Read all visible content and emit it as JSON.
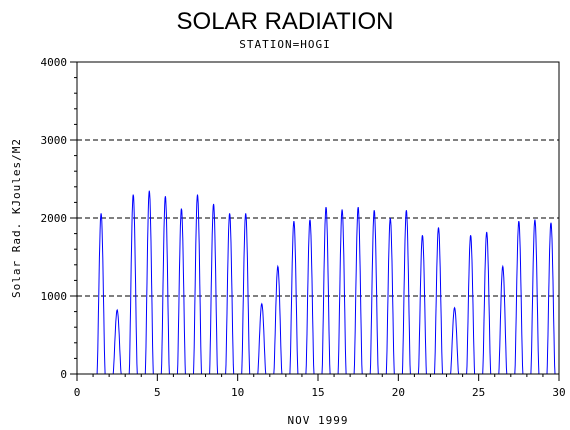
{
  "chart_data": {
    "type": "line",
    "title": "SOLAR RADIATION",
    "subtitle": "STATION=HOGI",
    "xlabel": "NOV 1999",
    "ylabel": "Solar Rad. KJoules/M2",
    "xlim": [
      0,
      30
    ],
    "ylim": [
      0,
      4000
    ],
    "x_ticks": [
      0,
      5,
      10,
      15,
      20,
      25,
      30
    ],
    "y_ticks": [
      0,
      1000,
      2000,
      3000,
      4000
    ],
    "grid": "horizontal dashed",
    "series": [
      {
        "color": "#0000ff",
        "daily_peaks": [
          {
            "day": 1,
            "peak": 2060
          },
          {
            "day": 2,
            "peak": 820
          },
          {
            "day": 3,
            "peak": 2300
          },
          {
            "day": 4,
            "peak": 2350
          },
          {
            "day": 5,
            "peak": 2280
          },
          {
            "day": 6,
            "peak": 2120
          },
          {
            "day": 7,
            "peak": 2300
          },
          {
            "day": 8,
            "peak": 2180
          },
          {
            "day": 9,
            "peak": 2060
          },
          {
            "day": 10,
            "peak": 2060
          },
          {
            "day": 11,
            "peak": 900
          },
          {
            "day": 12,
            "peak": 1380
          },
          {
            "day": 13,
            "peak": 1960
          },
          {
            "day": 14,
            "peak": 1980
          },
          {
            "day": 15,
            "peak": 2140
          },
          {
            "day": 16,
            "peak": 2110
          },
          {
            "day": 17,
            "peak": 2140
          },
          {
            "day": 18,
            "peak": 2100
          },
          {
            "day": 19,
            "peak": 2000
          },
          {
            "day": 20,
            "peak": 2100
          },
          {
            "day": 21,
            "peak": 1780
          },
          {
            "day": 22,
            "peak": 1880
          },
          {
            "day": 23,
            "peak": 850
          },
          {
            "day": 24,
            "peak": 1780
          },
          {
            "day": 25,
            "peak": 1820
          },
          {
            "day": 26,
            "peak": 1380
          },
          {
            "day": 27,
            "peak": 1960
          },
          {
            "day": 28,
            "peak": 1980
          },
          {
            "day": 29,
            "peak": 1940
          }
        ]
      }
    ]
  }
}
